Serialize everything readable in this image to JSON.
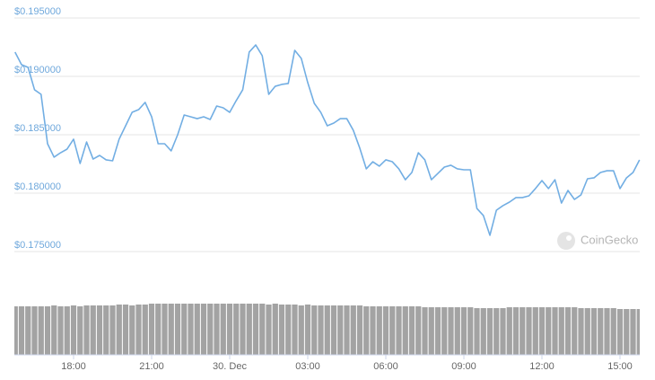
{
  "chart_data": [
    {
      "type": "line",
      "color": "#72aee3",
      "grid": true,
      "watermark": "CoinGecko",
      "xlim": [
        15.75,
        39.75
      ],
      "ylim": [
        0.175,
        0.195
      ],
      "yticks": [
        {
          "value": 0.195,
          "label": "$0.195000"
        },
        {
          "value": 0.19,
          "label": "$0.190000"
        },
        {
          "value": 0.185,
          "label": "$0.185000"
        },
        {
          "value": 0.18,
          "label": "$0.180000"
        },
        {
          "value": 0.175,
          "label": "$0.175000"
        }
      ],
      "x": [
        15.75,
        16,
        16.25,
        16.5,
        16.75,
        17,
        17.25,
        17.5,
        17.75,
        18,
        18.25,
        18.5,
        18.75,
        19,
        19.25,
        19.5,
        19.75,
        20,
        20.25,
        20.5,
        20.75,
        21,
        21.25,
        21.5,
        21.75,
        22,
        22.25,
        22.5,
        22.75,
        23,
        23.25,
        23.5,
        23.75,
        24,
        24.25,
        24.5,
        24.75,
        25,
        25.25,
        25.5,
        25.75,
        26,
        26.25,
        26.5,
        26.75,
        27,
        27.25,
        27.5,
        27.75,
        28,
        28.25,
        28.5,
        28.75,
        29,
        29.25,
        29.5,
        29.75,
        30,
        30.25,
        30.5,
        30.75,
        31,
        31.25,
        31.5,
        31.75,
        32,
        32.25,
        32.5,
        32.75,
        33,
        33.25,
        33.5,
        33.75,
        34,
        34.25,
        34.5,
        34.75,
        35,
        35.25,
        35.5,
        35.75,
        36,
        36.25,
        36.5,
        36.75,
        37,
        37.25,
        37.5,
        37.75,
        38,
        38.25,
        38.5,
        38.75,
        39,
        39.25,
        39.5,
        39.75
      ],
      "values": [
        0.19208,
        0.191,
        0.19077,
        0.18885,
        0.18846,
        0.18423,
        0.18308,
        0.18346,
        0.18377,
        0.18462,
        0.18254,
        0.18438,
        0.18292,
        0.18323,
        0.18285,
        0.18277,
        0.18462,
        0.18577,
        0.18692,
        0.18715,
        0.18777,
        0.18654,
        0.18423,
        0.18423,
        0.18362,
        0.185,
        0.18669,
        0.18654,
        0.18638,
        0.18654,
        0.18631,
        0.18746,
        0.18731,
        0.18692,
        0.18792,
        0.18885,
        0.19208,
        0.19269,
        0.19177,
        0.18846,
        0.18915,
        0.18931,
        0.18939,
        0.19223,
        0.19154,
        0.18946,
        0.18769,
        0.18692,
        0.18577,
        0.186,
        0.18638,
        0.18638,
        0.18538,
        0.18385,
        0.18208,
        0.18269,
        0.18231,
        0.18285,
        0.18269,
        0.18208,
        0.18115,
        0.18177,
        0.18346,
        0.18285,
        0.18115,
        0.18169,
        0.18223,
        0.18239,
        0.18208,
        0.182,
        0.182,
        0.17869,
        0.17808,
        0.17639,
        0.17854,
        0.17893,
        0.17923,
        0.17962,
        0.17962,
        0.17977,
        0.18039,
        0.18108,
        0.18039,
        0.18115,
        0.17915,
        0.18023,
        0.17946,
        0.17985,
        0.18123,
        0.18131,
        0.18177,
        0.18192,
        0.18192,
        0.18039,
        0.18131,
        0.18177,
        0.18285
      ]
    },
    {
      "type": "bar",
      "color": "#a3a3a3",
      "ylim": [
        0,
        57
      ],
      "xticks": [
        {
          "value": 18,
          "label": "18:00"
        },
        {
          "value": 21,
          "label": "21:00"
        },
        {
          "value": 24,
          "label": "30. Dec"
        },
        {
          "value": 27,
          "label": "03:00"
        },
        {
          "value": 30,
          "label": "06:00"
        },
        {
          "value": 33,
          "label": "09:00"
        },
        {
          "value": 36,
          "label": "12:00"
        },
        {
          "value": 39,
          "label": "15:00"
        }
      ],
      "values": [
        54,
        54,
        54,
        54,
        54,
        54,
        55,
        54,
        54,
        55,
        54,
        55,
        55,
        55,
        55,
        55,
        56,
        56,
        55,
        56,
        56,
        57,
        57,
        57,
        57,
        57,
        57,
        57,
        57,
        57,
        57,
        57,
        57,
        57,
        57,
        57,
        57,
        57,
        57,
        56,
        57,
        56,
        56,
        56,
        55,
        56,
        55,
        55,
        55,
        55,
        55,
        55,
        55,
        55,
        54,
        54,
        54,
        54,
        54,
        54,
        54,
        54,
        54,
        53,
        53,
        53,
        53,
        53,
        53,
        53,
        53,
        52,
        52,
        52,
        52,
        52,
        53,
        53,
        53,
        53,
        53,
        53,
        53,
        53,
        53,
        53,
        53,
        52,
        52,
        52,
        52,
        52,
        52,
        51,
        51,
        51,
        51
      ]
    }
  ]
}
